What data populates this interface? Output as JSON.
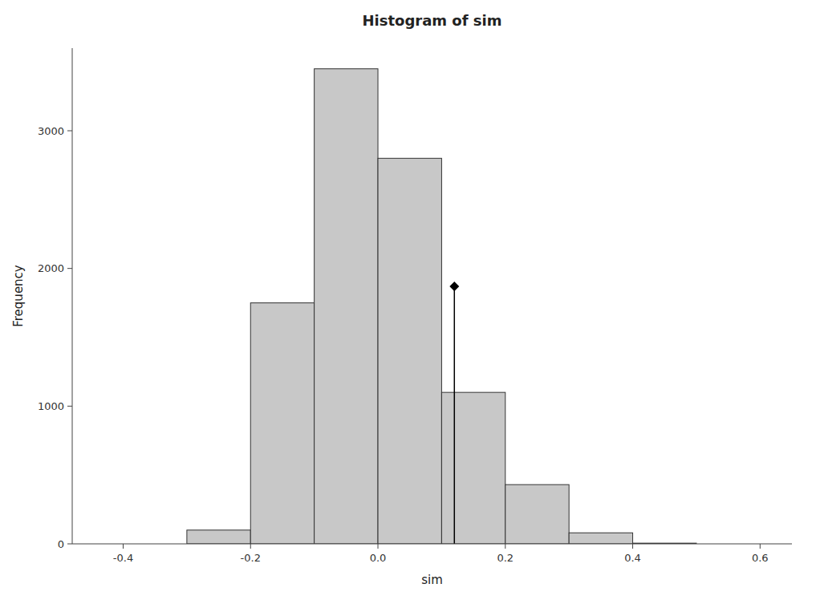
{
  "chart_data": {
    "type": "histogram",
    "title": "Histogram of sim",
    "x_label": "sim",
    "y_label": "Frequency",
    "bins": [
      -0.3,
      -0.2,
      -0.1,
      0.0,
      0.1,
      0.2,
      0.3,
      0.4,
      0.5
    ],
    "values": [
      100,
      1750,
      3450,
      2800,
      1100,
      430,
      80,
      5
    ],
    "color": "#c8c8c8",
    "observed": {
      "x": 0.12,
      "y": 1870,
      "y_bottom": 0
    },
    "xlim": [
      -0.48,
      0.65
    ],
    "xticks": [
      -0.4,
      -0.2,
      {
        "value": 0,
        "label": "0.0"
      },
      0.2,
      0.4,
      0.6
    ],
    "ylim": [
      0,
      3600
    ],
    "yticks": [
      0,
      1000,
      2000,
      3000
    ],
    "grid": false
  }
}
